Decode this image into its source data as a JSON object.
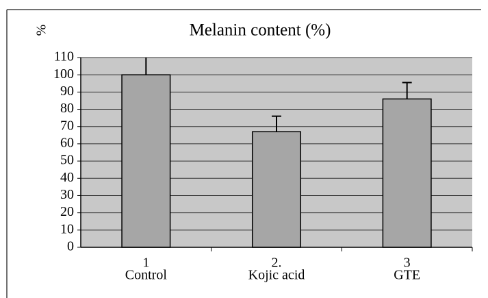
{
  "chart_data": {
    "type": "bar",
    "title": "Melanin content (%)",
    "y_label": "%",
    "categories": [
      [
        "1",
        "Control"
      ],
      [
        "2.",
        "Kojic acid"
      ],
      [
        "3",
        "GTE"
      ]
    ],
    "values": [
      100,
      67,
      86
    ],
    "errors": [
      17,
      9,
      9.5
    ],
    "color": "#a6a6a6",
    "ylim": [
      0,
      110
    ],
    "yticks": [
      0,
      10,
      20,
      30,
      40,
      50,
      60,
      70,
      80,
      90,
      100,
      110
    ],
    "grid": true
  }
}
